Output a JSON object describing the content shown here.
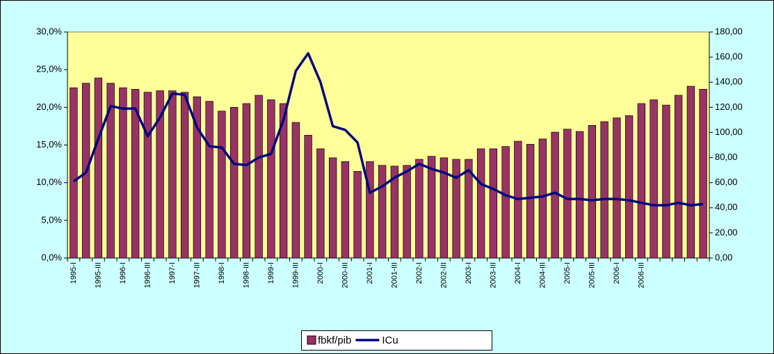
{
  "chart_data": {
    "type": "bar-line",
    "categories": [
      "1995-I",
      null,
      "1995-III",
      null,
      "1996-I",
      null,
      "1996-III",
      null,
      "1997-I",
      null,
      "1997-III",
      null,
      "1998-I",
      null,
      "1998-III",
      null,
      "1999-I",
      null,
      "1999-III",
      null,
      "2000-I",
      null,
      "2000-III",
      null,
      "2001-I",
      null,
      "2001-III",
      null,
      "2002-I",
      null,
      "2002-III",
      null,
      "2003-I",
      null,
      "2003-III",
      null,
      "2004-I",
      null,
      "2004-III",
      null,
      "2005-I",
      null,
      "2005-III",
      null,
      "2006-I",
      null,
      "2006-III",
      null,
      null,
      null,
      null,
      null
    ],
    "series": [
      {
        "name": "fbkf/pib",
        "type": "bar",
        "color": "#993366",
        "values": [
          22.6,
          23.2,
          23.9,
          23.2,
          22.6,
          22.4,
          22.0,
          22.2,
          22.2,
          22.0,
          21.4,
          20.8,
          19.5,
          20.0,
          20.5,
          21.6,
          21.0,
          20.5,
          18.0,
          16.3,
          14.5,
          13.3,
          12.8,
          11.5,
          12.8,
          12.3,
          12.2,
          12.3,
          13.1,
          13.5,
          13.3,
          13.1,
          13.1,
          14.5,
          14.5,
          14.8,
          15.5,
          15.1,
          15.8,
          16.7,
          17.1,
          16.8,
          17.6,
          18.1,
          18.6,
          18.9,
          20.5,
          21.0,
          20.3,
          21.6,
          22.8,
          22.4
        ]
      },
      {
        "name": "ICu",
        "type": "line",
        "axis": "y2",
        "color": "#000080",
        "values": [
          61,
          68,
          95,
          121,
          119,
          119,
          97,
          112,
          131,
          130,
          104,
          89,
          88,
          75,
          74,
          80,
          83,
          110,
          149,
          163,
          140,
          105,
          102,
          92,
          52,
          57,
          64,
          69,
          75,
          71,
          68,
          64,
          70,
          59,
          55,
          50,
          47,
          48,
          49,
          52,
          47,
          47,
          46,
          47,
          47,
          46,
          44,
          42,
          42,
          44,
          42,
          43
        ]
      }
    ],
    "ylim": [
      0,
      30
    ],
    "yticks": [
      {
        "value": 0,
        "label": "0,0%"
      },
      {
        "value": 5,
        "label": "5,0%"
      },
      {
        "value": 10,
        "label": "10,0%"
      },
      {
        "value": 15,
        "label": "15,0%"
      },
      {
        "value": 20,
        "label": "20,0%"
      },
      {
        "value": 25,
        "label": "25,0%"
      },
      {
        "value": 30,
        "label": "30,0%"
      }
    ],
    "y2lim": [
      0,
      180
    ],
    "y2ticks": [
      {
        "value": 0,
        "label": "0,00"
      },
      {
        "value": 20,
        "label": "20,00"
      },
      {
        "value": 40,
        "label": "40,00"
      },
      {
        "value": 60,
        "label": "60,00"
      },
      {
        "value": 80,
        "label": "80,00"
      },
      {
        "value": 100,
        "label": "100,00"
      },
      {
        "value": 120,
        "label": "120,00"
      },
      {
        "value": 140,
        "label": "140,00"
      },
      {
        "value": 160,
        "label": "160,00"
      },
      {
        "value": 180,
        "label": "180,00"
      }
    ],
    "grid": false,
    "legend": "bottom"
  }
}
